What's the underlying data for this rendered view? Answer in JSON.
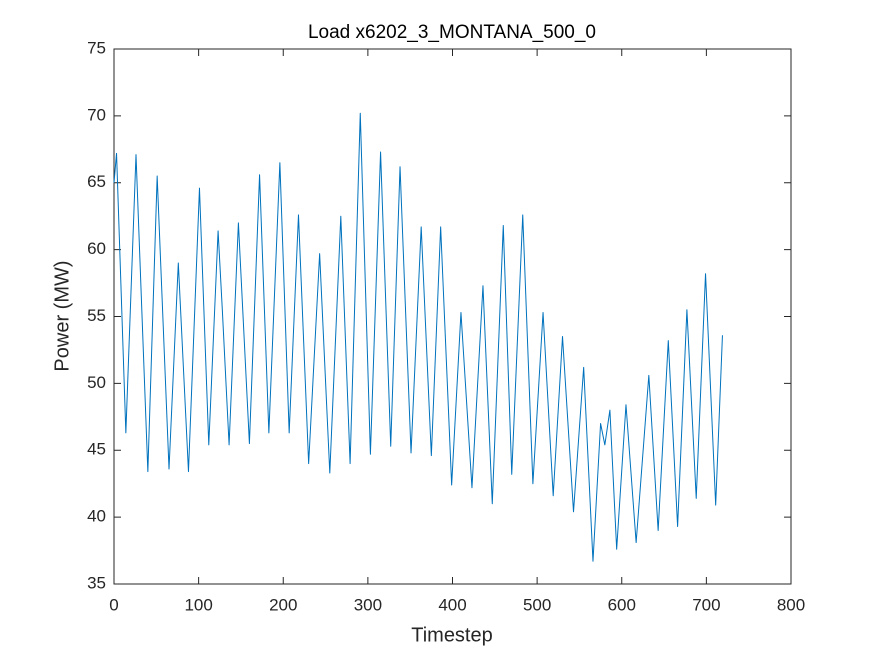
{
  "chart_data": {
    "type": "line",
    "title": "Load x6202_3_MONTANA_500_0",
    "x_label": "Timestep",
    "y_label": "Power (MW)",
    "xlim": [
      0,
      800
    ],
    "xticks": [
      0,
      100,
      200,
      300,
      400,
      500,
      600,
      700,
      800
    ],
    "ylim": [
      35,
      75
    ],
    "yticks": [
      35,
      40,
      45,
      50,
      55,
      60,
      65,
      70,
      75
    ],
    "grid": false,
    "series": [
      {
        "name": "Load",
        "color": "#0072BD",
        "x": [
          0,
          3,
          14,
          26,
          40,
          51,
          65,
          76,
          88,
          101,
          112,
          123,
          128,
          136,
          147,
          160,
          172,
          183,
          196,
          207,
          218,
          230,
          243,
          255,
          268,
          279,
          291,
          303,
          315,
          327,
          338,
          351,
          363,
          375,
          386,
          399,
          410,
          423,
          436,
          447,
          460,
          470,
          483,
          495,
          507,
          519,
          530,
          543,
          555,
          566,
          575,
          580,
          586,
          594,
          605,
          617,
          632,
          643,
          655,
          666,
          677,
          688,
          699,
          711,
          719
        ],
        "values": [
          65,
          67.2,
          46.3,
          67.1,
          43.4,
          65.5,
          43.6,
          59,
          43.4,
          64.6,
          45.4,
          61.4,
          55.5,
          45.4,
          62,
          45.5,
          65.6,
          46.3,
          66.5,
          46.3,
          62.6,
          44,
          59.7,
          43.3,
          62.5,
          44,
          70.2,
          44.7,
          67.3,
          45.3,
          66.2,
          44.8,
          61.7,
          44.6,
          61.7,
          42.4,
          55.3,
          42.2,
          57.3,
          41,
          61.8,
          43.2,
          62.6,
          42.5,
          55.3,
          41.6,
          53.5,
          40.4,
          51.2,
          36.7,
          47,
          45.4,
          48,
          37.6,
          48.4,
          38.1,
          50.6,
          39,
          53.2,
          39.3,
          55.5,
          41.4,
          58.2,
          40.9,
          53.6
        ]
      }
    ]
  }
}
